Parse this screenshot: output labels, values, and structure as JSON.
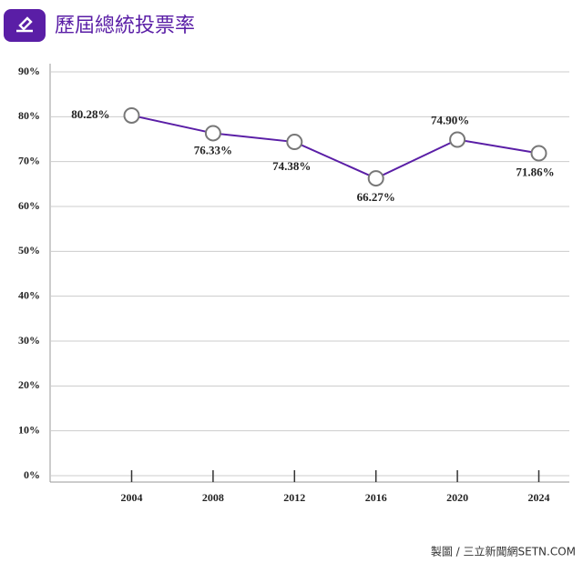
{
  "chart_data": {
    "type": "line",
    "title": "歷屆總統投票率",
    "categories": [
      "2004",
      "2008",
      "2012",
      "2016",
      "2020",
      "2024"
    ],
    "series": [
      {
        "name": "投票率",
        "color": "#5a1ea6",
        "values": [
          80.28,
          76.33,
          74.38,
          66.27,
          74.9,
          71.86
        ],
        "value_labels": [
          "80.28%",
          "76.33%",
          "74.38%",
          "66.27%",
          "74.90%",
          "71.86%"
        ]
      }
    ],
    "ylim": [
      0,
      90
    ],
    "yticks": [
      {
        "value": 0,
        "label": "0%"
      },
      {
        "value": 10,
        "label": "10%"
      },
      {
        "value": 20,
        "label": "20%"
      },
      {
        "value": 30,
        "label": "30%"
      },
      {
        "value": 40,
        "label": "40%"
      },
      {
        "value": 50,
        "label": "50%"
      },
      {
        "value": 60,
        "label": "60%"
      },
      {
        "value": 70,
        "label": "70%"
      },
      {
        "value": 80,
        "label": "80%"
      },
      {
        "value": 90,
        "label": "90%"
      }
    ],
    "grid": true,
    "source": "製圖 / 三立新聞網SETN.COM"
  }
}
